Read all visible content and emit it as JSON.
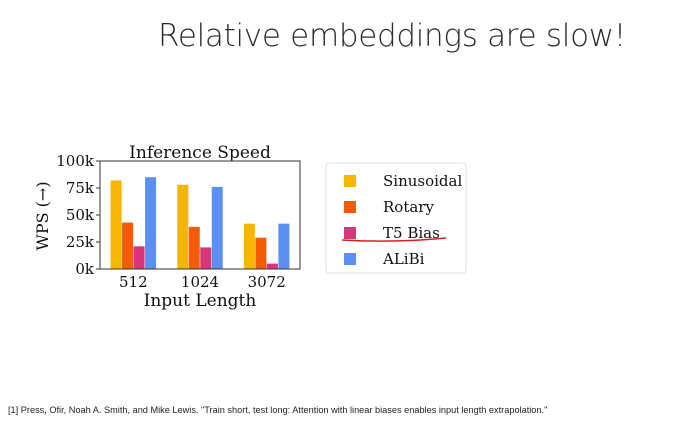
{
  "slide": {
    "title": "Relative embeddings are slow!",
    "citation": "[1] Press, Ofir, Noah A. Smith, and Mike Lewis. \"Train short, test long: Attention with linear biases enables input length extrapolation.\""
  },
  "chart_data": {
    "type": "bar",
    "title": "Inference Speed",
    "xlabel": "Input Length",
    "ylabel": "WPS (→)",
    "categories": [
      "512",
      "1024",
      "3072"
    ],
    "yticks": [
      "0k",
      "25k",
      "50k",
      "75k",
      "100k"
    ],
    "ylim": [
      0,
      100000
    ],
    "grid": false,
    "legend_position": "right, outside plot",
    "series": [
      {
        "name": "Sinusoidal",
        "color": "#f7b500",
        "values": [
          82000,
          78000,
          42000
        ]
      },
      {
        "name": "Rotary",
        "color": "#f25c05",
        "values": [
          43000,
          39000,
          29000
        ]
      },
      {
        "name": "T5 Bias",
        "color": "#d8357a",
        "values": [
          21000,
          20000,
          5000
        ]
      },
      {
        "name": "ALiBi",
        "color": "#5b8ff2",
        "values": [
          85000,
          76000,
          42000
        ]
      }
    ],
    "annotation": {
      "underlined_legend_entry": "T5 Bias",
      "color": "#d42020"
    }
  }
}
